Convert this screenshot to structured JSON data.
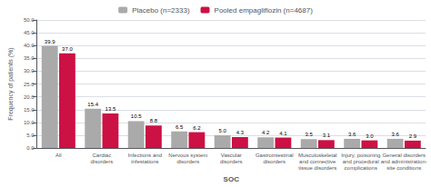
{
  "chart_data": {
    "type": "bar",
    "categories": [
      "All",
      "Cardiac\ndisorders",
      "Infections and\ninfestations",
      "Nervous system\ndisorders",
      "Vascular\ndisorders",
      "Gastrointestinal\ndisorders",
      "Musculoskeletal\nand connective\ntissue disorders",
      "Injury, poisoning\nand procedural\ncomplications",
      "General disorders\nand administration-\nsite conditions"
    ],
    "series": [
      {
        "name": "Placebo (n=2333)",
        "color": "#aaaaaa",
        "values": [
          39.9,
          15.4,
          10.5,
          6.5,
          5.0,
          4.2,
          3.5,
          3.6,
          3.6
        ],
        "value_labels": [
          "39.9",
          "15.4",
          "10.5",
          "6.5",
          "5.0",
          "4.2",
          "3.5",
          "3.6",
          "3.6"
        ]
      },
      {
        "name": "Pooled empagliflozin (n=4687)",
        "color": "#cc1144",
        "values": [
          37.0,
          13.5,
          8.8,
          6.2,
          4.3,
          4.1,
          3.1,
          3.0,
          2.9
        ],
        "value_labels": [
          "37.0",
          "13.5",
          "8.8",
          "6.2",
          "4.3",
          "4.1",
          "3.1",
          "3.0",
          "2.9"
        ]
      }
    ],
    "xlabel": "SOC",
    "ylabel": "Frequency of patients (%)",
    "ylim": [
      0,
      50
    ],
    "yticks": [
      {
        "value": 0,
        "label": "0.0"
      },
      {
        "value": 5,
        "label": "5.0"
      },
      {
        "value": 10,
        "label": "10.0"
      },
      {
        "value": 15,
        "label": "15.0"
      },
      {
        "value": 20,
        "label": "20.0"
      },
      {
        "value": 25,
        "label": "25.0"
      },
      {
        "value": 30,
        "label": "30.0"
      },
      {
        "value": 35,
        "label": "35.0"
      },
      {
        "value": 40,
        "label": "40.0"
      },
      {
        "value": 45,
        "label": "45.0"
      },
      {
        "value": 50,
        "label": "50.0"
      }
    ],
    "grid": true,
    "legend": "top",
    "data_labels": true
  }
}
